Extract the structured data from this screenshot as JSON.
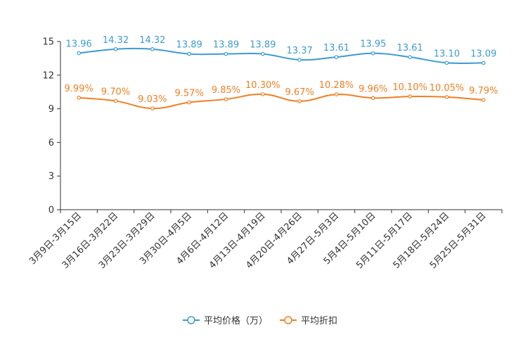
{
  "chart_data": {
    "type": "line",
    "categories": [
      "3月9日-3月15日",
      "3月16日-3月22日",
      "3月23日-3月29日",
      "3月30日-4月5日",
      "4月6日-4月12日",
      "4月13日-4月19日",
      "4月20日-4月26日",
      "4月27日-5月3日",
      "5月4日-5月10日",
      "5月11日-5月17日",
      "5月18日-5月24日",
      "5月25日-5月31日"
    ],
    "y_ticks": [
      0,
      3,
      6,
      9,
      12,
      15
    ],
    "ylim": [
      0,
      15
    ],
    "series": [
      {
        "name": "平均价格（万）",
        "color": "#3d9bd1",
        "values": [
          13.96,
          14.32,
          14.32,
          13.89,
          13.89,
          13.89,
          13.37,
          13.61,
          13.95,
          13.61,
          13.1,
          13.09
        ],
        "labels": [
          "13.96",
          "14.32",
          "14.32",
          "13.89",
          "13.89",
          "13.89",
          "13.37",
          "13.61",
          "13.95",
          "13.61",
          "13.10",
          "13.09"
        ]
      },
      {
        "name": "平均折扣",
        "color": "#f07f22",
        "values": [
          9.99,
          9.7,
          9.03,
          9.57,
          9.85,
          10.3,
          9.67,
          10.28,
          9.96,
          10.1,
          10.05,
          9.79
        ],
        "labels": [
          "9.99%",
          "9.70%",
          "9.03%",
          "9.57%",
          "9.85%",
          "10.30%",
          "9.67%",
          "10.28%",
          "9.96%",
          "10.10%",
          "10.05%",
          "9.79%"
        ]
      }
    ],
    "legend_position": "bottom-center",
    "grid": false
  }
}
